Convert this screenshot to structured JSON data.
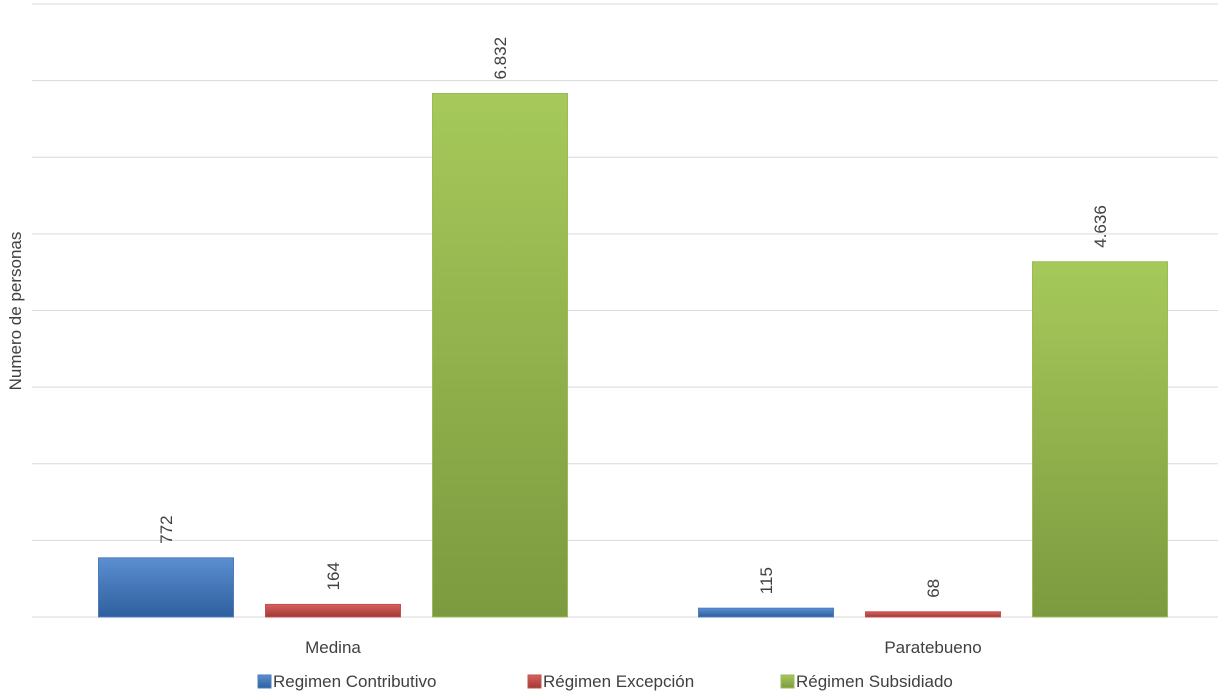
{
  "chart_data": {
    "type": "bar",
    "categories": [
      "Medina",
      "Paratebueno"
    ],
    "series": [
      {
        "name": "Regimen Contributivo",
        "values": [
          772,
          115
        ],
        "color": "#4a7ebb",
        "label_values": [
          "772",
          "115"
        ]
      },
      {
        "name": "Régimen Excepción",
        "values": [
          164,
          68
        ],
        "color": "#c0504d",
        "label_values": [
          "164",
          "68"
        ]
      },
      {
        "name": "Régimen Subsidiado",
        "values": [
          6832,
          4636
        ],
        "color": "#9bbb59",
        "label_values": [
          "6.832",
          "4.636"
        ]
      }
    ],
    "ylabel": "Numero de personas",
    "ylim": [
      0,
      8000
    ],
    "grid": true,
    "legend_position": "bottom"
  }
}
